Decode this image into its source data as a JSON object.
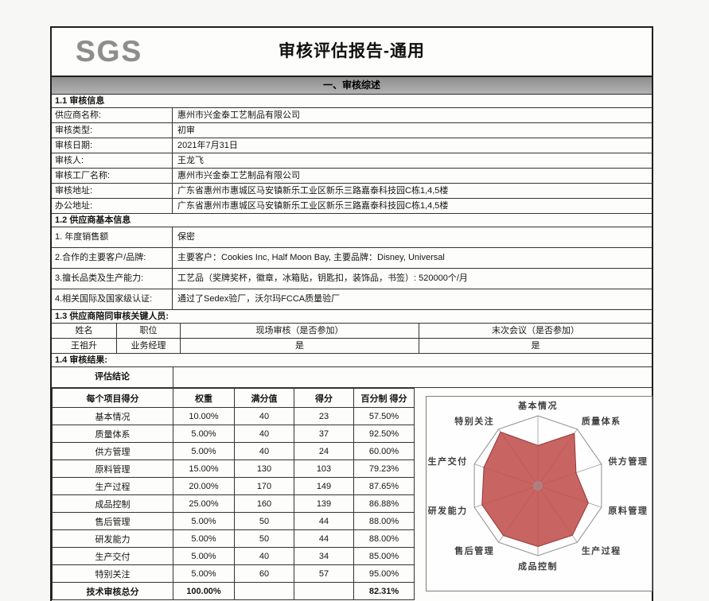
{
  "page": {
    "logo": "SGS",
    "title": "审核评估报告-通用",
    "section_bar": "一、审核综述"
  },
  "audit_info": {
    "heading": "1.1 审核信息",
    "rows": [
      {
        "label": "供应商名称:",
        "value": "惠州市兴金泰工艺制品有限公司"
      },
      {
        "label": "审核类型:",
        "value": "初审"
      },
      {
        "label": "审核日期:",
        "value": "2021年7月31日"
      },
      {
        "label": "审核人:",
        "value": "王龙飞"
      },
      {
        "label": "审核工厂名称:",
        "value": "惠州市兴金泰工艺制品有限公司"
      },
      {
        "label": "审核地址:",
        "value": "广东省惠州市惠城区马安镇新乐工业区新乐三路嘉泰科技园C栋1,4,5楼"
      },
      {
        "label": "办公地址:",
        "value": "广东省惠州市惠城区马安镇新乐工业区新乐三路嘉泰科技园C栋1,4,5楼"
      }
    ]
  },
  "supplier_info": {
    "heading": "1.2 供应商基本信息",
    "rows": [
      {
        "label": "1. 年度销售额",
        "value": "保密"
      },
      {
        "label": "2.合作的主要客户/品牌:",
        "value": "主要客户：Cookies Inc, Half Moon Bay, 主要品牌：Disney, Universal"
      },
      {
        "label": "3.擅长品类及生产能力:",
        "value": "工艺品（奖牌奖杯，徽章，冰箱贴，钥匙扣，装饰品，书签）: 520000个/月"
      },
      {
        "label": "4.相关国际及国家级认证:",
        "value": "通过了Sedex验厂，沃尔玛FCCA质量验厂"
      }
    ]
  },
  "key_persons": {
    "heading": "1.3 供应商陪同审核关键人员:",
    "columns": [
      "姓名",
      "职位",
      "现场审核（是否参加）",
      "末次会议（是否参加）"
    ],
    "rows": [
      [
        "王祖升",
        "业务经理",
        "是",
        "是"
      ]
    ]
  },
  "audit_result": {
    "heading": "1.4 审核结果:",
    "conclusion_label": "评估结论",
    "conclusion_value": "",
    "score_table": {
      "columns": [
        "每个项目得分",
        "权重",
        "满分值",
        "得分",
        "百分制 得分"
      ],
      "rows": [
        [
          "基本情况",
          "10.00%",
          "40",
          "23",
          "57.50%"
        ],
        [
          "质量体系",
          "5.00%",
          "40",
          "37",
          "92.50%"
        ],
        [
          "供方管理",
          "5.00%",
          "40",
          "24",
          "60.00%"
        ],
        [
          "原料管理",
          "15.00%",
          "130",
          "103",
          "79.23%"
        ],
        [
          "生产过程",
          "20.00%",
          "170",
          "149",
          "87.65%"
        ],
        [
          "成品控制",
          "25.00%",
          "160",
          "139",
          "86.88%"
        ],
        [
          "售后管理",
          "5.00%",
          "50",
          "44",
          "88.00%"
        ],
        [
          "研发能力",
          "5.00%",
          "50",
          "44",
          "88.00%"
        ],
        [
          "生产交付",
          "5.00%",
          "40",
          "34",
          "85.00%"
        ],
        [
          "特别关注",
          "5.00%",
          "60",
          "57",
          "95.00%"
        ]
      ],
      "total_row": [
        "技术审核总分",
        "100.00%",
        "",
        "",
        "82.31%"
      ]
    }
  },
  "chart_data": {
    "type": "radar",
    "categories": [
      "基本情况",
      "质量体系",
      "供方管理",
      "原料管理",
      "生产过程",
      "成品控制",
      "售后管理",
      "研发能力",
      "生产交付",
      "特别关注"
    ],
    "values": [
      57.5,
      92.5,
      60.0,
      79.23,
      87.65,
      86.88,
      88.0,
      88.0,
      85.0,
      95.0
    ],
    "max": 100,
    "legend": "none",
    "grid": "outer-ring-and-spokes"
  },
  "colors": {
    "series_fill": "#c0504d",
    "series_stroke": "#943634",
    "grid_line": "#9a9a9a",
    "chart_label": "#3f3f3f",
    "bar_gray_top": "#8e8e8e",
    "bar_gray_bottom": "#b2b2b2",
    "logo_gray": "#8d8d8d",
    "table_border": "#333333"
  }
}
